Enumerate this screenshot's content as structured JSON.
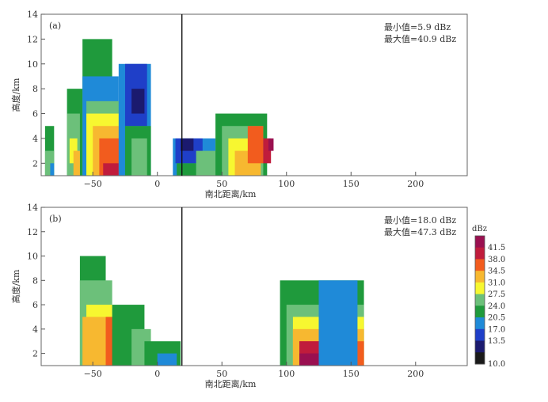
{
  "chart_data": [
    {
      "type": "heatmap",
      "panel_label": "(a)",
      "xlabel": "南北距离/km",
      "ylabel": "高度/km",
      "xlim": [
        -90,
        240
      ],
      "ylim": [
        1,
        14
      ],
      "xticks": [
        -50,
        0,
        50,
        100,
        150,
        200
      ],
      "yticks": [
        2,
        4,
        6,
        8,
        10,
        12,
        14
      ],
      "vertical_line_x": 19,
      "min_text": "最小值=5.9 dBz",
      "max_text": "最大值=40.9 dBz",
      "cells": [
        [
          -87,
          1,
          -80,
          5,
          20.5
        ],
        [
          -87,
          1,
          -80,
          3,
          24.0
        ],
        [
          -83,
          1,
          -80,
          2,
          17.0
        ],
        [
          -70,
          1,
          -58,
          8,
          20.5
        ],
        [
          -70,
          1,
          -60,
          6,
          24.0
        ],
        [
          -68,
          2,
          -62,
          4,
          27.5
        ],
        [
          -65,
          1,
          -60,
          3,
          31.0
        ],
        [
          -58,
          1,
          -35,
          12,
          20.5
        ],
        [
          -58,
          1,
          -30,
          9,
          17.0
        ],
        [
          -55,
          1,
          -25,
          7,
          24.0
        ],
        [
          -55,
          1,
          -25,
          6,
          27.5
        ],
        [
          -50,
          1,
          -25,
          5,
          31.0
        ],
        [
          -45,
          1,
          -25,
          4,
          34.5
        ],
        [
          -42,
          1,
          -30,
          2,
          38.0
        ],
        [
          -30,
          1,
          -5,
          10,
          17.0
        ],
        [
          -25,
          5,
          -8,
          10,
          13.5
        ],
        [
          -20,
          6,
          -10,
          8,
          10.0
        ],
        [
          -25,
          1,
          -5,
          5,
          20.5
        ],
        [
          -20,
          1,
          -8,
          4,
          24.0
        ],
        [
          12,
          1,
          45,
          4,
          17.0
        ],
        [
          14,
          2,
          35,
          4,
          13.5
        ],
        [
          18,
          3,
          28,
          4,
          10.0
        ],
        [
          15,
          1,
          40,
          2,
          20.5
        ],
        [
          30,
          1,
          50,
          3,
          24.0
        ],
        [
          45,
          1,
          85,
          6,
          20.5
        ],
        [
          50,
          1,
          82,
          5,
          24.0
        ],
        [
          55,
          1,
          80,
          4,
          27.5
        ],
        [
          60,
          1,
          80,
          3,
          31.0
        ],
        [
          70,
          2,
          82,
          5,
          34.5
        ],
        [
          82,
          2,
          88,
          4,
          38.0
        ],
        [
          86,
          3,
          90,
          4,
          41.5
        ]
      ]
    },
    {
      "type": "heatmap",
      "panel_label": "(b)",
      "xlabel": "南北距离/km",
      "ylabel": "高度/km",
      "xlim": [
        -90,
        240
      ],
      "ylim": [
        1,
        14
      ],
      "xticks": [
        -50,
        0,
        50,
        100,
        150,
        200
      ],
      "yticks": [
        2,
        4,
        6,
        8,
        10,
        12,
        14
      ],
      "vertical_line_x": 19,
      "min_text": "最小值=18.0 dBz",
      "max_text": "最大值=47.3 dBz",
      "cells": [
        [
          -60,
          1,
          -40,
          10,
          20.5
        ],
        [
          -60,
          1,
          -35,
          8,
          24.0
        ],
        [
          -55,
          1,
          -35,
          6,
          27.5
        ],
        [
          -58,
          1,
          -25,
          5,
          31.0
        ],
        [
          -40,
          1,
          -20,
          5,
          34.5
        ],
        [
          -35,
          1,
          -25,
          4,
          38.0
        ],
        [
          -35,
          1,
          -10,
          6,
          20.5
        ],
        [
          -20,
          1,
          -5,
          4,
          24.0
        ],
        [
          -10,
          1,
          18,
          3,
          20.5
        ],
        [
          0,
          1,
          15,
          2,
          17.0
        ],
        [
          95,
          1,
          160,
          8,
          20.5
        ],
        [
          100,
          1,
          160,
          6,
          24.0
        ],
        [
          105,
          1,
          160,
          5,
          27.5
        ],
        [
          105,
          1,
          160,
          4,
          31.0
        ],
        [
          110,
          1,
          160,
          3,
          34.5
        ],
        [
          110,
          1,
          150,
          3,
          38.0
        ],
        [
          110,
          1,
          135,
          2,
          41.5
        ],
        [
          115,
          1,
          130,
          2,
          44.5
        ],
        [
          125,
          1,
          155,
          8,
          17.0
        ]
      ]
    }
  ],
  "colorbar": {
    "unit": "dBz",
    "levels": [
      10.0,
      13.5,
      17.0,
      20.5,
      24.0,
      27.5,
      31.0,
      34.5,
      38.0,
      41.5
    ],
    "colors": [
      "#1a1a1a",
      "#1b1a6e",
      "#1f3fc8",
      "#1f8ad8",
      "#1f9a3c",
      "#6cc07a",
      "#f7f730",
      "#f7b830",
      "#f25c1e",
      "#c01c3c",
      "#9a1050"
    ]
  }
}
